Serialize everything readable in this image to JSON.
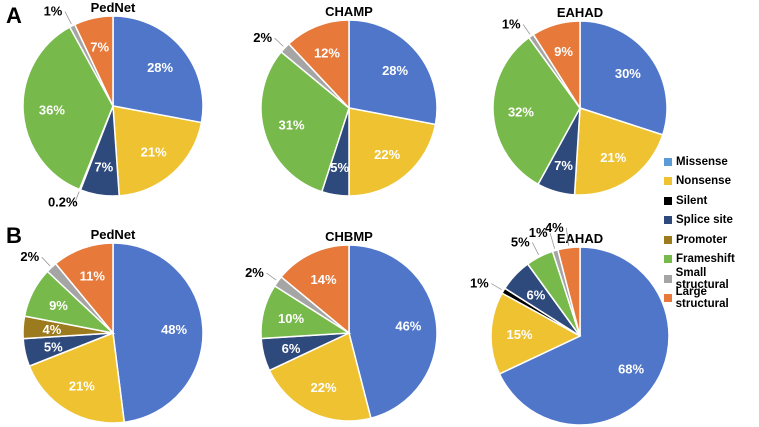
{
  "chart_data": {
    "type": "pie",
    "panels": [
      "A",
      "B"
    ],
    "legend": {
      "placement": "right",
      "entries": [
        {
          "name": "Missense",
          "color": "#5B9BD5"
        },
        {
          "name": "Nonsense",
          "color": "#EEC231"
        },
        {
          "name": "Silent",
          "color": "#000000"
        },
        {
          "name": "Splice site",
          "color": "#2E4A7D"
        },
        {
          "name": "Promoter",
          "color": "#9C7B1E"
        },
        {
          "name": "Frameshift",
          "color": "#77B94A"
        },
        {
          "name": "Small structural",
          "color": "#A5A5A5"
        },
        {
          "name": "Large structural",
          "color": "#E7793A"
        }
      ]
    },
    "slice_colors": {
      "Missense": "#4F76C9",
      "Nonsense": "#EEC231",
      "Silent": "#000000",
      "Splice site": "#2E4A7D",
      "Promoter": "#9C7B1E",
      "Frameshift": "#77B94A",
      "Small structural": "#A5A5A5",
      "Large structural": "#E7793A"
    },
    "charts": [
      {
        "panel": "A",
        "title": "PedNet",
        "slices": [
          {
            "category": "Missense",
            "value": 28,
            "label": "28%"
          },
          {
            "category": "Nonsense",
            "value": 21,
            "label": "21%"
          },
          {
            "category": "Splice site",
            "value": 7,
            "label": "7%"
          },
          {
            "category": "Promoter",
            "value": 0.2,
            "label": "0.2%",
            "label_outside": true
          },
          {
            "category": "Frameshift",
            "value": 36,
            "label": "36%"
          },
          {
            "category": "Small structural",
            "value": 1,
            "label": "1%",
            "label_outside": true
          },
          {
            "category": "Large structural",
            "value": 7,
            "label": "7%"
          }
        ]
      },
      {
        "panel": "A",
        "title": "CHAMP",
        "slices": [
          {
            "category": "Missense",
            "value": 28,
            "label": "28%"
          },
          {
            "category": "Nonsense",
            "value": 22,
            "label": "22%"
          },
          {
            "category": "Splice site",
            "value": 5,
            "label": "5%"
          },
          {
            "category": "Frameshift",
            "value": 31,
            "label": "31%"
          },
          {
            "category": "Small structural",
            "value": 2,
            "label": "2%",
            "label_outside": true
          },
          {
            "category": "Large structural",
            "value": 12,
            "label": "12%"
          }
        ]
      },
      {
        "panel": "A",
        "title": "EAHAD",
        "slices": [
          {
            "category": "Missense",
            "value": 30,
            "label": "30%"
          },
          {
            "category": "Nonsense",
            "value": 21,
            "label": "21%"
          },
          {
            "category": "Splice site",
            "value": 7,
            "label": "7%"
          },
          {
            "category": "Frameshift",
            "value": 32,
            "label": "32%"
          },
          {
            "category": "Small structural",
            "value": 1,
            "label": "1%",
            "label_outside": true
          },
          {
            "category": "Large structural",
            "value": 9,
            "label": "9%"
          }
        ]
      },
      {
        "panel": "B",
        "title": "PedNet",
        "slices": [
          {
            "category": "Missense",
            "value": 48,
            "label": "48%"
          },
          {
            "category": "Nonsense",
            "value": 21,
            "label": "21%"
          },
          {
            "category": "Splice site",
            "value": 5,
            "label": "5%"
          },
          {
            "category": "Promoter",
            "value": 4,
            "label": "4%"
          },
          {
            "category": "Frameshift",
            "value": 9,
            "label": "9%"
          },
          {
            "category": "Small structural",
            "value": 2,
            "label": "2%",
            "label_outside": true
          },
          {
            "category": "Large structural",
            "value": 11,
            "label": "11%"
          }
        ]
      },
      {
        "panel": "B",
        "title": "CHBMP",
        "slices": [
          {
            "category": "Missense",
            "value": 46,
            "label": "46%"
          },
          {
            "category": "Nonsense",
            "value": 22,
            "label": "22%"
          },
          {
            "category": "Splice site",
            "value": 6,
            "label": "6%"
          },
          {
            "category": "Frameshift",
            "value": 10,
            "label": "10%"
          },
          {
            "category": "Small structural",
            "value": 2,
            "label": "2%",
            "label_outside": true
          },
          {
            "category": "Large structural",
            "value": 14,
            "label": "14%"
          }
        ]
      },
      {
        "panel": "B",
        "title": "EAHAD",
        "slices": [
          {
            "category": "Missense",
            "value": 68,
            "label": "68%"
          },
          {
            "category": "Nonsense",
            "value": 15,
            "label": "15%"
          },
          {
            "category": "Silent",
            "value": 1,
            "label": "1%",
            "label_outside": true
          },
          {
            "category": "Splice site",
            "value": 6,
            "label": "6%"
          },
          {
            "category": "Frameshift",
            "value": 5,
            "label": "5%",
            "label_outside": true
          },
          {
            "category": "Small structural",
            "value": 1,
            "label": "1%",
            "label_outside": true
          },
          {
            "category": "Large structural",
            "value": 4,
            "label": "4%",
            "label_outside": true
          }
        ]
      }
    ]
  }
}
